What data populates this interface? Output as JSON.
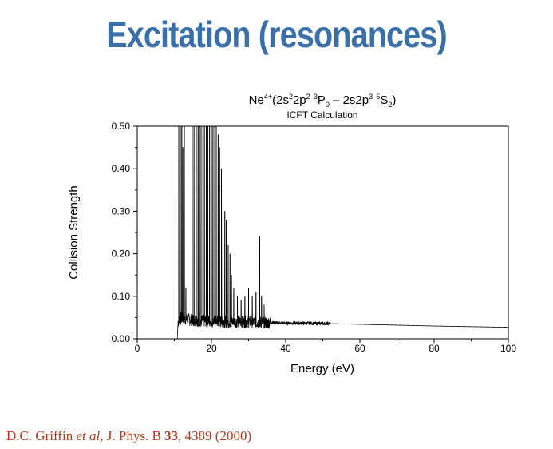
{
  "slide": {
    "title": "Excitation (resonances)",
    "title_color": "#3a6fa8"
  },
  "citation": {
    "authors": "D.C. Griffin ",
    "etal": "et al",
    "journal": ", J. Phys. B ",
    "volume": "33",
    "rest": ", 4389 (2000)",
    "color": "#b03a1a"
  },
  "chart_data": {
    "type": "line",
    "title_parts": {
      "ion": "Ne",
      "charge": "4+",
      "open": "(2s",
      "e1": "2",
      "p1": "2p",
      "e2": "2",
      "sp1": " ",
      "mult1": "3",
      "term1": "P",
      "j1": "0",
      "dash": " – 2s2p",
      "e3": "3",
      "sp2": " ",
      "mult2": "5",
      "term2": "S",
      "j2": "2",
      "close": ")"
    },
    "subtitle": "ICFT Calculation",
    "xlabel": "Energy (eV)",
    "ylabel": "Collision Strength",
    "xlim": [
      0,
      100
    ],
    "ylim": [
      0,
      0.5
    ],
    "xticks": [
      "0",
      "20",
      "40",
      "60",
      "80",
      "100"
    ],
    "yticks": [
      "0.00",
      "0.10",
      "0.20",
      "0.30",
      "0.40",
      "0.50"
    ],
    "threshold_eV": 10.8,
    "background": [
      [
        10.8,
        0.0
      ],
      [
        11.0,
        0.04
      ],
      [
        12,
        0.05
      ],
      [
        14,
        0.045
      ],
      [
        18,
        0.042
      ],
      [
        25,
        0.04
      ],
      [
        30,
        0.04
      ],
      [
        40,
        0.037
      ],
      [
        50,
        0.036
      ],
      [
        60,
        0.034
      ],
      [
        80,
        0.03
      ],
      [
        100,
        0.027
      ]
    ],
    "peaks_eV": [
      11.2,
      11.6,
      12.0,
      12.3,
      12.7,
      13.1,
      14.8,
      15.3,
      15.9,
      16.4,
      16.8,
      17.2,
      17.7,
      18.1,
      18.6,
      19.0,
      19.5,
      20.0,
      20.4,
      20.9,
      21.3,
      21.8,
      22.2,
      22.7,
      23.1,
      23.6,
      24.0,
      24.5,
      25.0,
      25.4,
      26.0,
      27.0,
      28.0,
      29.0,
      30.0,
      31.0,
      32.0,
      33.0,
      33.5,
      34.2
    ],
    "peaks_value": [
      0.5,
      0.5,
      0.5,
      0.45,
      0.5,
      0.12,
      0.5,
      0.5,
      0.5,
      0.5,
      0.5,
      0.5,
      0.5,
      0.5,
      0.5,
      0.5,
      0.5,
      0.5,
      0.5,
      0.5,
      0.5,
      0.48,
      0.45,
      0.4,
      0.35,
      0.3,
      0.28,
      0.22,
      0.2,
      0.15,
      0.12,
      0.1,
      0.09,
      0.1,
      0.12,
      0.1,
      0.11,
      0.24,
      0.1,
      0.08
    ],
    "grid": false,
    "line_color": "#000000"
  }
}
